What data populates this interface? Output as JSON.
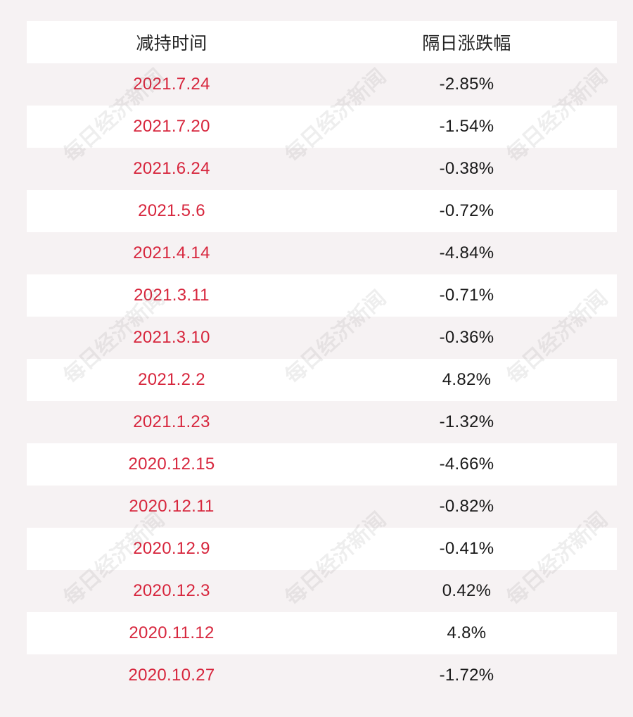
{
  "table": {
    "header": {
      "col1": "减持时间",
      "col2": "隔日涨跌幅"
    },
    "rows": [
      {
        "date": "2021.7.24",
        "change": "-2.85%"
      },
      {
        "date": "2021.7.20",
        "change": "-1.54%"
      },
      {
        "date": "2021.6.24",
        "change": "-0.38%"
      },
      {
        "date": "2021.5.6",
        "change": "-0.72%"
      },
      {
        "date": "2021.4.14",
        "change": "-4.84%"
      },
      {
        "date": "2021.3.11",
        "change": "-0.71%"
      },
      {
        "date": "2021.3.10",
        "change": "-0.36%"
      },
      {
        "date": "2021.2.2",
        "change": "4.82%"
      },
      {
        "date": "2021.1.23",
        "change": "-1.32%"
      },
      {
        "date": "2020.12.15",
        "change": "-4.66%"
      },
      {
        "date": "2020.12.11",
        "change": "-0.82%"
      },
      {
        "date": "2020.12.9",
        "change": "-0.41%"
      },
      {
        "date": "2020.12.3",
        "change": "0.42%"
      },
      {
        "date": "2020.11.12",
        "change": "4.8%"
      },
      {
        "date": "2020.10.27",
        "change": "-1.72%"
      }
    ]
  },
  "watermark": {
    "text": "每日经济新闻"
  },
  "colors": {
    "date_text": "#d7263d",
    "value_text": "#1a1a1a",
    "band": "#f6f2f3",
    "row_white": "#ffffff"
  }
}
